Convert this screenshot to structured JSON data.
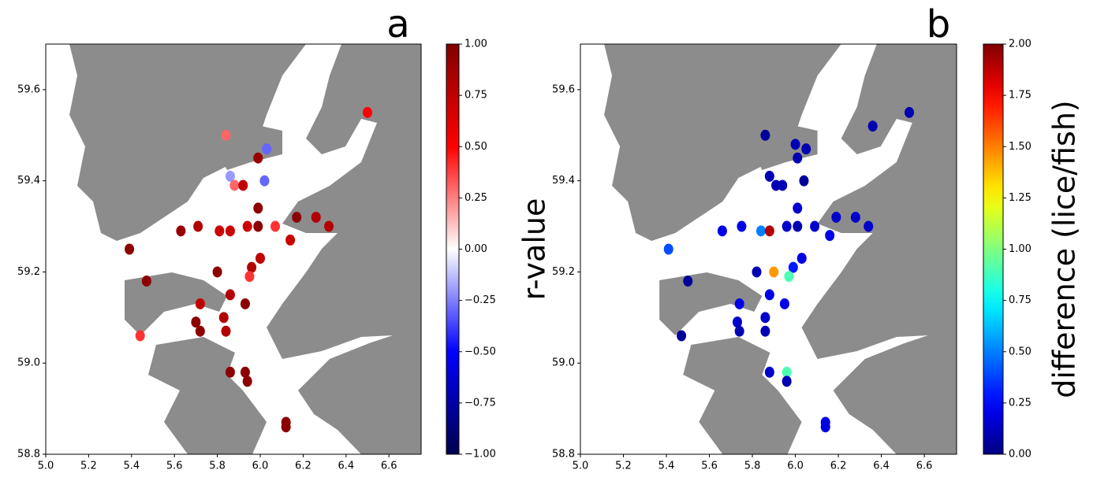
{
  "chart_data": [
    {
      "type": "scatter",
      "panel_label": "a",
      "cmap": "seismic",
      "xlim": [
        5.0,
        6.75
      ],
      "ylim": [
        58.8,
        59.7
      ],
      "xticks": [
        {
          "value": 5.0,
          "label": "5.0"
        },
        5.2,
        5.4,
        5.6,
        5.8,
        {
          "value": 6.0,
          "label": "6.0"
        },
        6.2,
        6.4,
        6.6
      ],
      "yticks": [
        58.8,
        {
          "value": 59.0,
          "label": "59.0"
        },
        59.2,
        59.4,
        59.6
      ],
      "x": [
        6.5,
        5.84,
        6.03,
        5.99,
        5.86,
        5.88,
        5.92,
        6.02,
        5.99,
        6.17,
        6.26,
        6.32,
        5.63,
        5.71,
        5.81,
        5.86,
        5.94,
        5.99,
        6.07,
        6.14,
        5.39,
        5.47,
        6.0,
        5.96,
        5.95,
        5.8,
        5.86,
        5.72,
        5.93,
        5.83,
        5.7,
        5.72,
        5.84,
        5.44,
        5.86,
        5.93,
        5.94,
        6.12,
        6.12
      ],
      "y": [
        59.55,
        59.5,
        59.47,
        59.45,
        59.41,
        59.39,
        59.39,
        59.4,
        59.34,
        59.32,
        59.32,
        59.3,
        59.29,
        59.3,
        59.29,
        59.29,
        59.3,
        59.3,
        59.3,
        59.27,
        59.25,
        59.18,
        59.23,
        59.21,
        59.19,
        59.2,
        59.15,
        59.13,
        59.13,
        59.1,
        59.09,
        59.07,
        59.07,
        59.06,
        58.98,
        58.98,
        58.96,
        58.87,
        58.86
      ],
      "c": [
        0.5,
        0.3,
        -0.3,
        0.9,
        -0.2,
        0.3,
        0.75,
        -0.3,
        0.95,
        0.95,
        0.8,
        0.8,
        0.9,
        0.8,
        0.7,
        0.7,
        0.7,
        0.95,
        0.4,
        0.7,
        0.95,
        0.95,
        0.75,
        0.8,
        0.4,
        0.95,
        0.8,
        0.75,
        0.95,
        0.8,
        0.95,
        0.95,
        0.8,
        0.4,
        0.95,
        0.95,
        0.95,
        0.95,
        0.95
      ],
      "colorbar": {
        "label": "r-value",
        "lim": [
          -1,
          1
        ],
        "ticks": [
          {
            "value": -1,
            "label": "−1.00"
          },
          {
            "value": -0.75,
            "label": "−0.75"
          },
          {
            "value": -0.5,
            "label": "−0.50"
          },
          {
            "value": -0.25,
            "label": "−0.25"
          },
          {
            "value": 0,
            "label": "0.00"
          },
          {
            "value": 0.25,
            "label": "0.25"
          },
          {
            "value": 0.5,
            "label": "0.50"
          },
          {
            "value": 0.75,
            "label": "0.75"
          },
          {
            "value": 1,
            "label": "1.00"
          }
        ]
      }
    },
    {
      "type": "scatter",
      "panel_label": "b",
      "cmap": "jet",
      "xlim": [
        5.0,
        6.75
      ],
      "ylim": [
        58.8,
        59.7
      ],
      "xticks": [
        {
          "value": 5.0,
          "label": "5.0"
        },
        5.2,
        5.4,
        5.6,
        5.8,
        {
          "value": 6.0,
          "label": "6.0"
        },
        6.2,
        6.4,
        6.6
      ],
      "yticks": [
        58.8,
        {
          "value": 59.0,
          "label": "59.0"
        },
        59.2,
        59.4,
        59.6
      ],
      "x": [
        6.53,
        6.36,
        5.86,
        6.0,
        6.05,
        6.01,
        5.88,
        5.91,
        5.94,
        6.04,
        6.01,
        6.19,
        6.28,
        6.34,
        5.66,
        5.75,
        5.84,
        5.88,
        5.96,
        6.01,
        6.09,
        6.16,
        5.41,
        5.5,
        6.03,
        5.99,
        5.97,
        5.9,
        5.82,
        5.88,
        5.74,
        5.95,
        5.86,
        5.73,
        5.74,
        5.86,
        5.47,
        5.88,
        5.96,
        5.96,
        6.14,
        6.14
      ],
      "y": [
        59.55,
        59.52,
        59.5,
        59.48,
        59.47,
        59.45,
        59.41,
        59.39,
        59.39,
        59.4,
        59.34,
        59.32,
        59.32,
        59.3,
        59.29,
        59.3,
        59.29,
        59.29,
        59.3,
        59.3,
        59.3,
        59.28,
        59.25,
        59.18,
        59.23,
        59.21,
        59.19,
        59.2,
        59.2,
        59.15,
        59.13,
        59.13,
        59.1,
        59.09,
        59.07,
        59.07,
        59.06,
        58.98,
        58.98,
        58.96,
        58.87,
        58.86
      ],
      "c": [
        0.1,
        0.1,
        0.05,
        0.1,
        0.1,
        0.1,
        0.1,
        0.1,
        0.1,
        0.05,
        0.15,
        0.15,
        0.15,
        0.15,
        0.2,
        0.2,
        0.5,
        1.9,
        0.15,
        0.1,
        0.15,
        0.2,
        0.4,
        0.05,
        0.2,
        0.3,
        0.9,
        1.45,
        0.1,
        0.2,
        0.2,
        0.2,
        0.15,
        0.15,
        0.1,
        0.1,
        0.05,
        0.15,
        0.9,
        0.1,
        0.2,
        0.2
      ],
      "colorbar": {
        "label": "difference (lice/fish)",
        "lim": [
          0,
          2
        ],
        "ticks": [
          {
            "value": 0,
            "label": "0.00"
          },
          {
            "value": 0.25,
            "label": "0.25"
          },
          {
            "value": 0.5,
            "label": "0.50"
          },
          {
            "value": 0.75,
            "label": "0.75"
          },
          {
            "value": 1,
            "label": "1.00"
          },
          {
            "value": 1.25,
            "label": "1.25"
          },
          {
            "value": 1.5,
            "label": "1.50"
          },
          {
            "value": 1.75,
            "label": "1.75"
          },
          {
            "value": 2,
            "label": "2.00"
          }
        ]
      }
    }
  ]
}
